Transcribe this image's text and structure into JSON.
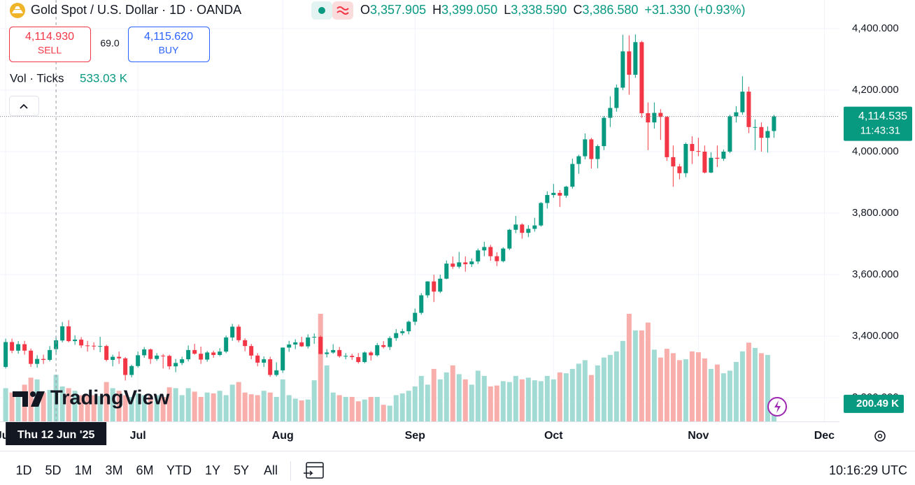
{
  "chart_data": {
    "type": "candlestick",
    "title": "Gold Spot / U.S. Dollar · 1D · OANDA",
    "up_color": "#089981",
    "down_color": "#f23645",
    "volume_up_color": "#a2dbd3",
    "volume_down_color": "#f8aeab",
    "grid": true,
    "xlim": [
      -0.9,
      132.4
    ],
    "ylim": [
      3123,
      4493
    ],
    "yticks": [
      {
        "value": 4400,
        "label": "4,400.000"
      },
      {
        "value": 4200,
        "label": "4,200.000"
      },
      {
        "value": 4000,
        "label": "4,000.000"
      },
      {
        "value": 3800,
        "label": "3,800.000"
      },
      {
        "value": 3600,
        "label": "3,600.000"
      },
      {
        "value": 3400,
        "label": "3,400.000"
      },
      {
        "value": 3200,
        "label": "3,200.000"
      }
    ],
    "xticks": [
      {
        "value": 0,
        "label": "Jun"
      },
      {
        "value": 21,
        "label": "Jul"
      },
      {
        "value": 44,
        "label": "Aug"
      },
      {
        "value": 65,
        "label": "Sep"
      },
      {
        "value": 87,
        "label": "Oct"
      },
      {
        "value": 110,
        "label": "Nov"
      },
      {
        "value": 130,
        "label": "Dec"
      }
    ],
    "open": [
      3300,
      3381,
      3353,
      3374,
      3353,
      3310,
      3326,
      3323,
      3357.905,
      3386,
      3432,
      3384,
      3389,
      3370,
      3369,
      3368,
      3368,
      3323,
      3333,
      3328,
      3274,
      3303,
      3338,
      3357,
      3326,
      3337,
      3336,
      3302,
      3313,
      3325,
      3355,
      3343,
      3324,
      3347,
      3339,
      3350,
      3396,
      3431,
      3387,
      3368,
      3337,
      3314,
      3325,
      3274,
      3289,
      3363,
      3373,
      3380,
      3367,
      3396,
      3398,
      3342,
      3347,
      3355,
      3335,
      3336,
      3332,
      3316,
      3347,
      3338,
      3371,
      3365,
      3394,
      3410,
      3416,
      3447,
      3476,
      3533,
      3578,
      3545,
      3587,
      3636,
      3626,
      3640,
      3634,
      3643,
      3679,
      3690,
      3660,
      3644,
      3685,
      3746,
      3763,
      3736,
      3749,
      3760,
      3833,
      3859,
      3866,
      3857,
      3886,
      3960,
      3985,
      4040,
      3976,
      4018,
      4110,
      4142,
      4208,
      4326,
      4250,
      4356,
      4125,
      4095,
      4126,
      4113,
      3982,
      3952,
      3930,
      4025,
      4002,
      4000,
      3932,
      3980,
      3977,
      4000,
      4115,
      4128,
      4195,
      4080,
      4080,
      4045,
      4067
    ],
    "high": [
      3392,
      3392,
      3384,
      3385,
      3360,
      3338,
      3340,
      3368,
      3399.05,
      3446,
      3452,
      3403,
      3397,
      3385,
      3380,
      3398,
      3372,
      3340,
      3350,
      3332,
      3307,
      3350,
      3365,
      3360,
      3345,
      3342,
      3340,
      3326,
      3333,
      3370,
      3375,
      3366,
      3352,
      3353,
      3361,
      3402,
      3440,
      3438,
      3393,
      3375,
      3345,
      3334,
      3333,
      3315,
      3363,
      3385,
      3390,
      3398,
      3406,
      3409,
      3402,
      3358,
      3374,
      3365,
      3345,
      3343,
      3345,
      3350,
      3352,
      3378,
      3384,
      3400,
      3423,
      3424,
      3451,
      3490,
      3540,
      3579,
      3600,
      3600,
      3646,
      3659,
      3674,
      3659,
      3653,
      3685,
      3707,
      3697,
      3673,
      3689,
      3749,
      3791,
      3767,
      3761,
      3785,
      3836,
      3871,
      3895,
      3875,
      3889,
      3977,
      3990,
      4059,
      4045,
      4023,
      4116,
      4180,
      4218,
      4380,
      4378,
      4381,
      4360,
      4160,
      4160,
      4138,
      4115,
      4020,
      3960,
      4030,
      4050,
      4045,
      4020,
      3998,
      4020,
      4007,
      4120,
      4148,
      4245,
      4211,
      4105,
      4095,
      4082,
      4120
    ],
    "low": [
      3295,
      3345,
      3343,
      3340,
      3300,
      3298,
      3310,
      3318,
      3338.59,
      3380,
      3380,
      3372,
      3362,
      3350,
      3355,
      3348,
      3318,
      3302,
      3310,
      3256,
      3266,
      3298,
      3330,
      3310,
      3320,
      3295,
      3292,
      3283,
      3306,
      3318,
      3340,
      3310,
      3317,
      3330,
      3335,
      3345,
      3385,
      3380,
      3351,
      3325,
      3302,
      3300,
      3268,
      3269,
      3281,
      3349,
      3358,
      3365,
      3360,
      3375,
      3342,
      3331,
      3343,
      3330,
      3325,
      3323,
      3311,
      3312,
      3321,
      3334,
      3360,
      3355,
      3385,
      3403,
      3406,
      3436,
      3470,
      3525,
      3511,
      3540,
      3585,
      3619,
      3620,
      3610,
      3625,
      3635,
      3660,
      3645,
      3628,
      3640,
      3680,
      3735,
      3717,
      3722,
      3740,
      3756,
      3815,
      3850,
      3820,
      3850,
      3880,
      3928,
      3975,
      3945,
      3946,
      4005,
      4080,
      4130,
      4200,
      4185,
      4240,
      4110,
      4005,
      4075,
      4038,
      3970,
      3886,
      3910,
      3917,
      3960,
      3985,
      3929,
      3930,
      3950,
      3970,
      3995,
      4095,
      4120,
      4060,
      4005,
      4000,
      3997,
      4045
    ],
    "close": [
      3381,
      3353,
      3374,
      3353,
      3310,
      3326,
      3323,
      3355,
      3386.58,
      3432,
      3384,
      3389,
      3370,
      3369,
      3368,
      3368,
      3323,
      3333,
      3328,
      3274,
      3303,
      3338,
      3357,
      3326,
      3337,
      3336,
      3302,
      3313,
      3325,
      3355,
      3343,
      3324,
      3347,
      3339,
      3350,
      3396,
      3431,
      3387,
      3368,
      3337,
      3314,
      3325,
      3274,
      3289,
      3363,
      3373,
      3380,
      3367,
      3396,
      3398,
      3342,
      3347,
      3355,
      3335,
      3336,
      3332,
      3316,
      3347,
      3338,
      3371,
      3365,
      3394,
      3410,
      3416,
      3447,
      3476,
      3533,
      3578,
      3545,
      3587,
      3636,
      3626,
      3640,
      3634,
      3643,
      3679,
      3690,
      3660,
      3644,
      3685,
      3746,
      3763,
      3736,
      3749,
      3760,
      3833,
      3859,
      3866,
      3857,
      3886,
      3960,
      3985,
      4040,
      3976,
      4018,
      4110,
      4142,
      4208,
      4326,
      4250,
      4356,
      4125,
      4095,
      4126,
      4113,
      3982,
      3952,
      3930,
      4025,
      4002,
      4000,
      3932,
      3980,
      3977,
      4000,
      4115,
      4128,
      4195,
      4080,
      4080,
      4045,
      4067,
      4114.535
    ],
    "volume": [
      380000,
      330000,
      300000,
      420000,
      500000,
      480000,
      330000,
      360000,
      533030,
      400000,
      380000,
      350000,
      300000,
      300000,
      300000,
      290000,
      450000,
      380000,
      350000,
      300000,
      280000,
      320000,
      300000,
      290000,
      300000,
      280000,
      390000,
      380000,
      300000,
      380000,
      340000,
      280000,
      330000,
      320000,
      350000,
      300000,
      420000,
      450000,
      330000,
      310000,
      300000,
      350000,
      330000,
      280000,
      480000,
      300000,
      260000,
      240000,
      250000,
      470000,
      1230000,
      640000,
      330000,
      300000,
      280000,
      280000,
      230000,
      250000,
      280000,
      280000,
      190000,
      180000,
      300000,
      320000,
      350000,
      400000,
      520000,
      420000,
      600000,
      480000,
      560000,
      640000,
      540000,
      480000,
      420000,
      580000,
      520000,
      400000,
      410000,
      460000,
      450000,
      520000,
      480000,
      500000,
      470000,
      460000,
      520000,
      480000,
      560000,
      550000,
      600000,
      660000,
      700000,
      530000,
      640000,
      730000,
      760000,
      800000,
      920000,
      1230000,
      1040000,
      1040000,
      1130000,
      820000,
      730000,
      830000,
      780000,
      700000,
      710000,
      800000,
      790000,
      720000,
      600000,
      650000,
      550000,
      580000,
      680000,
      800000,
      900000,
      840000,
      780000,
      760000,
      200490
    ],
    "crosshair": {
      "date_label": "Thu 12 Jun '25",
      "ohlc_letters": [
        "O",
        "H",
        "L",
        "C"
      ],
      "ohlc_value_labels": [
        "3,357.905",
        "3,399.050",
        "3,338.590",
        "3,386.580"
      ],
      "change_label": "+31.330 (+0.93%)",
      "volume_title": "Vol · Ticks",
      "volume_value_label": "533.03 K"
    },
    "last": {
      "price_label": "4,114.535",
      "countdown": "11:43:31",
      "volume_label": "200.49 K"
    }
  },
  "trade_panel": {
    "sell_price": "4,114.930",
    "sell_label": "SELL",
    "spread": "69.0",
    "buy_price": "4,115.620",
    "buy_label": "BUY"
  },
  "logo": "TradingView",
  "toolbar": {
    "ranges": [
      "1D",
      "5D",
      "1M",
      "3M",
      "6M",
      "YTD",
      "1Y",
      "5Y",
      "All"
    ],
    "clock": "10:16:29 UTC"
  }
}
